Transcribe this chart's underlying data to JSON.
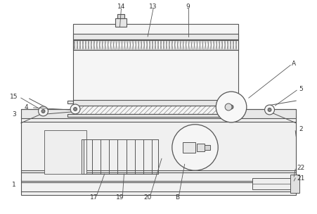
{
  "bg_color": "#ffffff",
  "line_color": "#555555",
  "label_color": "#333333",
  "figsize": [
    4.51,
    3.04
  ],
  "dpi": 100,
  "lw": 0.8
}
